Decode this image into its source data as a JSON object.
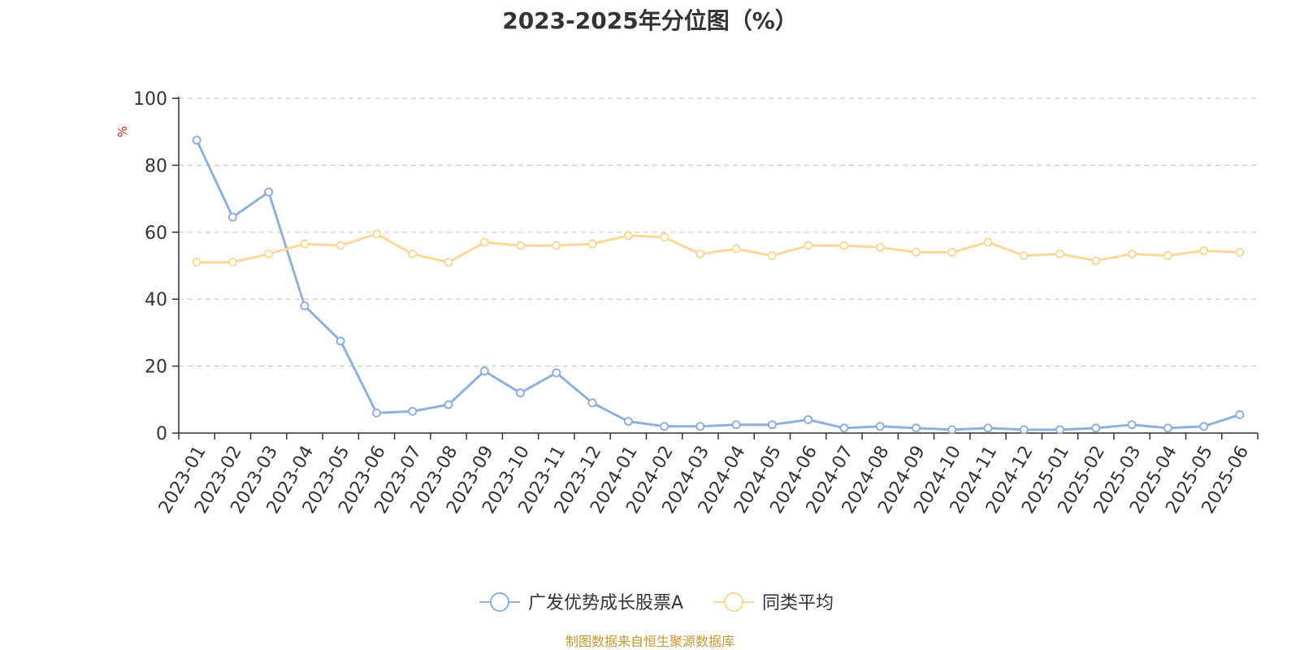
{
  "chart_data": {
    "type": "line",
    "title": "2023-2025年分位图（%）",
    "ylabel": "%",
    "ylim": [
      0,
      100
    ],
    "yticks": [
      "0",
      "20",
      "40",
      "60",
      "80",
      "100"
    ],
    "grid": true,
    "legend_position": "bottom-center",
    "categories": [
      "2023-01",
      "2023-02",
      "2023-03",
      "2023-04",
      "2023-05",
      "2023-06",
      "2023-07",
      "2023-08",
      "2023-09",
      "2023-10",
      "2023-11",
      "2023-12",
      "2024-01",
      "2024-02",
      "2024-03",
      "2024-04",
      "2024-05",
      "2024-06",
      "2024-07",
      "2024-08",
      "2024-09",
      "2024-10",
      "2024-11",
      "2024-12",
      "2025-01",
      "2025-02",
      "2025-03",
      "2025-04",
      "2025-05",
      "2025-06"
    ],
    "series": [
      {
        "name": "广发优势成长股票A",
        "color": "#8eb0db",
        "values": [
          87.5,
          64.5,
          72,
          38,
          27.5,
          6,
          6.5,
          8.5,
          18.5,
          12,
          18,
          9,
          3.5,
          2,
          2,
          2.5,
          2.5,
          4,
          1.5,
          2,
          1.5,
          1,
          1.5,
          1,
          1,
          1.5,
          2.5,
          1.5,
          2,
          5.5
        ]
      },
      {
        "name": "同类平均",
        "color": "#fad998",
        "values": [
          51,
          51,
          53.5,
          56.5,
          56,
          59.5,
          53.5,
          51,
          57,
          56,
          56,
          56.5,
          59,
          58.5,
          53.5,
          55,
          53,
          56,
          56,
          55.5,
          54,
          54,
          57,
          53,
          53.5,
          51.5,
          53.5,
          53,
          54.5,
          54
        ]
      }
    ]
  },
  "colors": {
    "unit_label": "#e02020",
    "source": "#c8962c",
    "grid": "#cccccc",
    "axis": "#333333"
  },
  "source_text": "制图数据来自恒生聚源数据库"
}
